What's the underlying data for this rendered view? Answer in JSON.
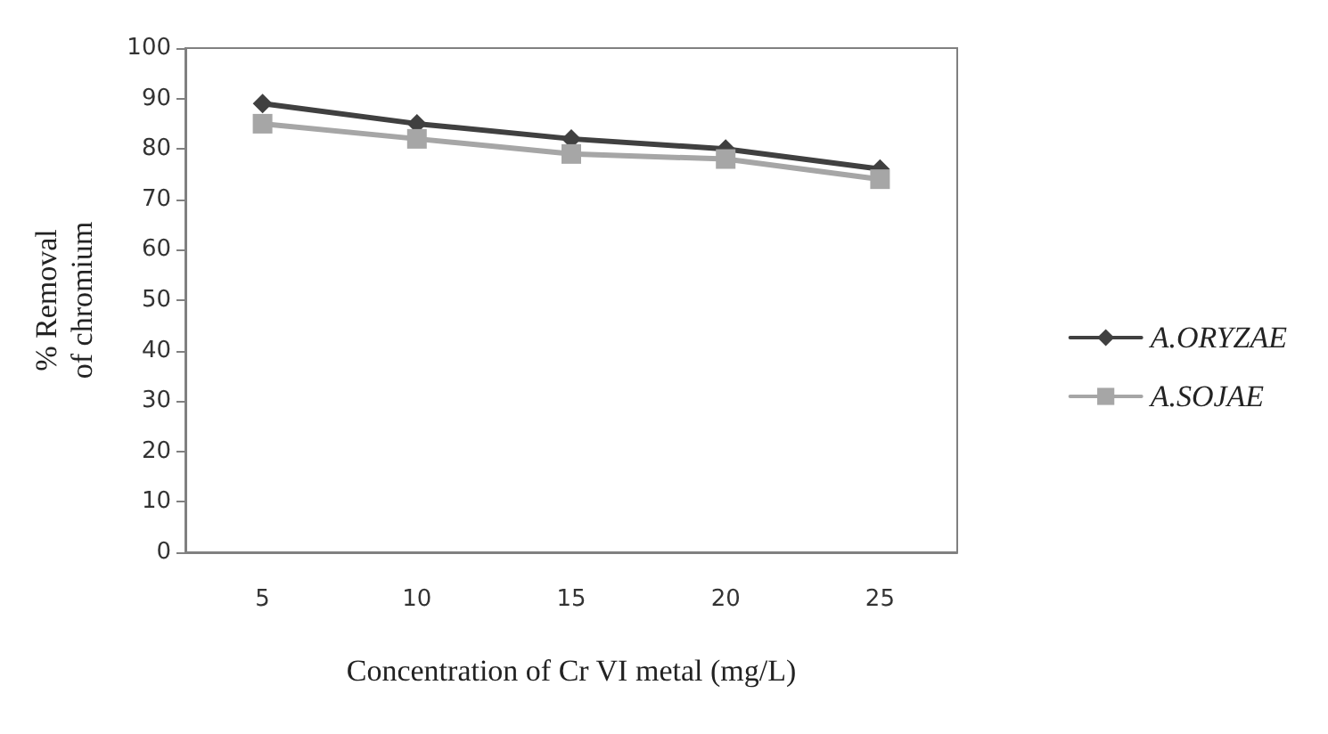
{
  "chart_data": {
    "type": "line",
    "xlabel": "Concentration of Cr VI metal (mg/L)",
    "ylabel": "% Removal\nof chromium",
    "categories": [
      "5",
      "10",
      "15",
      "20",
      "25"
    ],
    "series": [
      {
        "name": "A.ORYZAE",
        "color": "#404040",
        "values": [
          89,
          85,
          82,
          80,
          76
        ],
        "marker": "diamond"
      },
      {
        "name": "A.SOJAE",
        "color": "#a6a6a6",
        "values": [
          85,
          82,
          79,
          78,
          74
        ],
        "marker": "square"
      }
    ],
    "ylim": [
      0,
      100
    ],
    "yticks": [
      0,
      10,
      20,
      30,
      40,
      50,
      60,
      70,
      80,
      90,
      100
    ],
    "grid": false,
    "legend": "right",
    "line_style": "solid"
  }
}
